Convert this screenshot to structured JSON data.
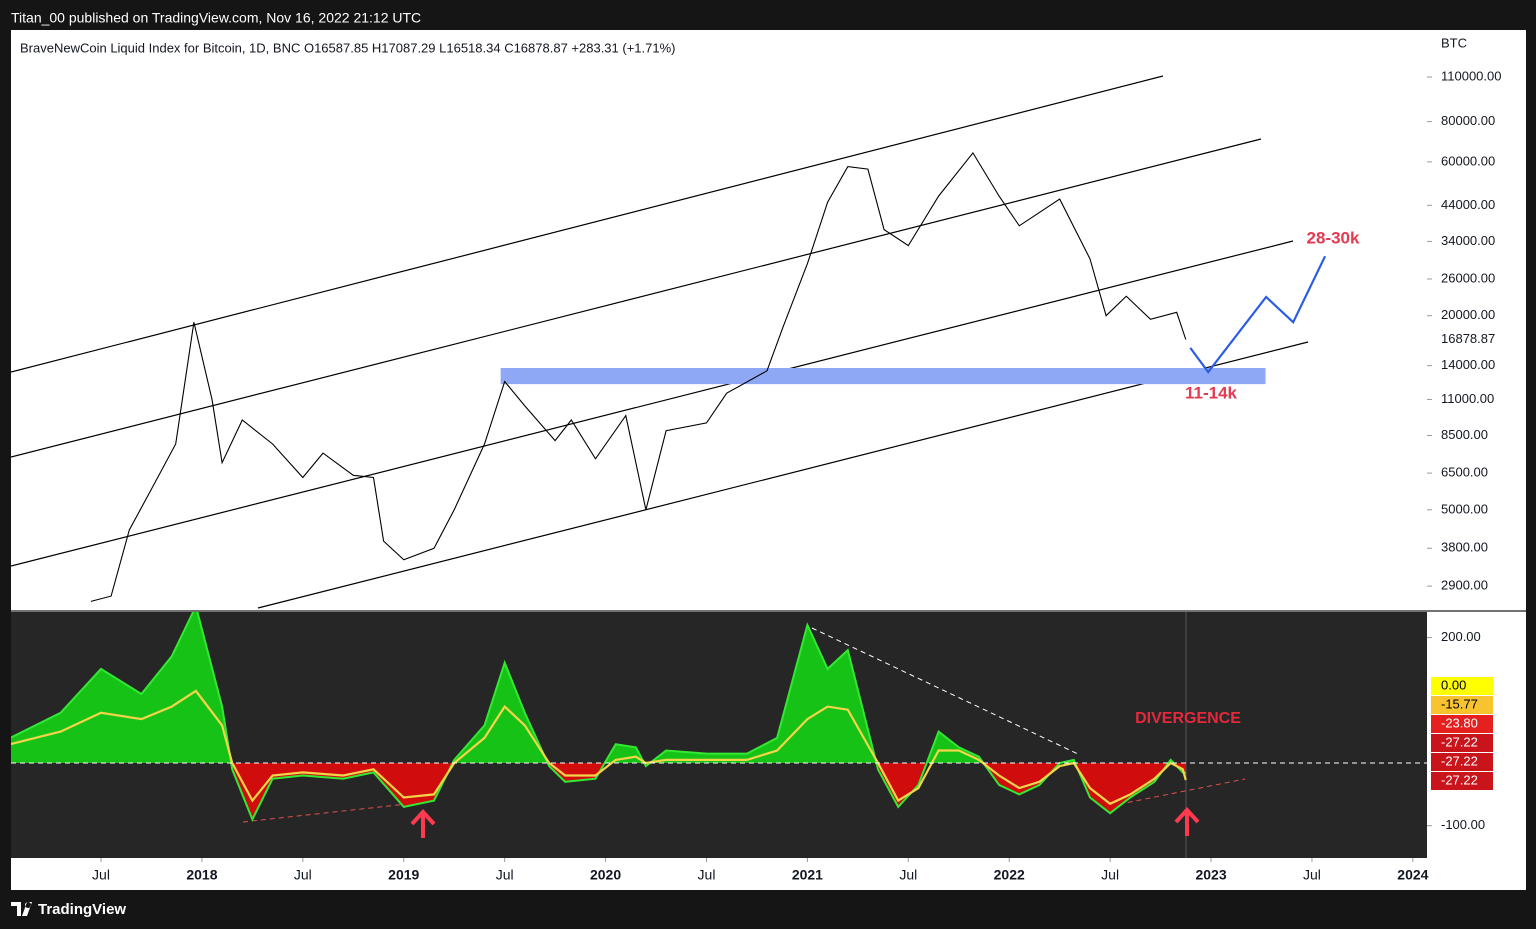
{
  "header": {
    "publisher": "Titan_00 published on TradingView.com, Nov 16, 2022 21:12 UTC"
  },
  "footer": {
    "brand": "TradingView"
  },
  "chart_data": [
    {
      "type": "line",
      "title": "BraveNewCoin Liquid Index for Bitcoin, 1D, BNC  O16587.85  H17087.29  L16518.34  C16878.87  +283.31 (+1.71%)",
      "currency": "BTC",
      "log_scale": true,
      "grid": false,
      "color": "#000000",
      "x": [
        2017.45,
        2017.55,
        2017.64,
        2017.75,
        2017.87,
        2017.96,
        2018.05,
        2018.1,
        2018.2,
        2018.35,
        2018.5,
        2018.6,
        2018.75,
        2018.85,
        2018.9,
        2019.0,
        2019.15,
        2019.25,
        2019.4,
        2019.5,
        2019.6,
        2019.75,
        2019.83,
        2019.95,
        2020.1,
        2020.2,
        2020.3,
        2020.5,
        2020.6,
        2020.8,
        2020.88,
        2021.0,
        2021.1,
        2021.2,
        2021.3,
        2021.38,
        2021.5,
        2021.65,
        2021.82,
        2021.95,
        2022.05,
        2022.25,
        2022.4,
        2022.48,
        2022.58,
        2022.7,
        2022.83,
        2022.875
      ],
      "values": [
        2600,
        2700,
        4330,
        5800,
        8000,
        19100,
        11000,
        7000,
        9500,
        8000,
        6300,
        7500,
        6400,
        6300,
        4000,
        3500,
        3800,
        5000,
        8000,
        12500,
        10500,
        8200,
        9500,
        7200,
        9800,
        5000,
        8800,
        9300,
        11500,
        13500,
        18500,
        29000,
        45000,
        58000,
        57000,
        37000,
        33000,
        47000,
        64000,
        47000,
        38000,
        46000,
        30000,
        20000,
        23000,
        19500,
        20500,
        16878.87
      ],
      "xlim": [
        2017.054,
        2024.07
      ],
      "ylim": [
        2445,
        153900
      ],
      "xticks": [
        {
          "value": 2017.5,
          "label": "Jul"
        },
        2018,
        {
          "value": 2018.5,
          "label": "Jul"
        },
        2019,
        {
          "value": 2019.5,
          "label": "Jul"
        },
        2020,
        {
          "value": 2020.5,
          "label": "Jul"
        },
        2021,
        {
          "value": 2021.5,
          "label": "Jul"
        },
        2022,
        {
          "value": 2022.5,
          "label": "Jul"
        },
        2023,
        {
          "value": 2023.5,
          "label": "Jul"
        },
        2024
      ],
      "yticks": [
        {
          "value": 110000,
          "label": "110000.00"
        },
        {
          "value": 80000,
          "label": "80000.00"
        },
        {
          "value": 60000,
          "label": "60000.00"
        },
        {
          "value": 44000,
          "label": "44000.00"
        },
        {
          "value": 34000,
          "label": "34000.00"
        },
        {
          "value": 26000,
          "label": "26000.00"
        },
        {
          "value": 20000,
          "label": "20000.00"
        },
        {
          "value": 14000,
          "label": "14000.00"
        },
        {
          "value": 11000,
          "label": "11000.00"
        },
        {
          "value": 8500,
          "label": "8500.00"
        },
        {
          "value": 6500,
          "label": "6500.00"
        },
        {
          "value": 5000,
          "label": "5000.00"
        },
        {
          "value": 3800,
          "label": "3800.00"
        },
        {
          "value": 2900,
          "label": "2900.00"
        }
      ],
      "zone": {
        "x": [
          2019.48,
          2023.27
        ],
        "y": [
          12270,
          13770
        ],
        "color": "#8fa8f5"
      },
      "projection": {
        "x": [
          2022.897,
          2022.986,
          2023.273,
          2023.407,
          2023.565
        ],
        "values": [
          15890,
          13380,
          22860,
          19100,
          30600
        ],
        "color": "#2b5ce6"
      },
      "annotations": [
        "28-30k",
        "11-14k"
      ],
      "annotation_color": "#e5394f"
    },
    {
      "type": "line",
      "grid": false,
      "x": [
        2017.05,
        2017.3,
        2017.5,
        2017.7,
        2017.85,
        2017.97,
        2018.1,
        2018.15,
        2018.25,
        2018.35,
        2018.5,
        2018.7,
        2018.85,
        2019.0,
        2019.15,
        2019.25,
        2019.4,
        2019.5,
        2019.6,
        2019.72,
        2019.8,
        2019.95,
        2020.05,
        2020.15,
        2020.2,
        2020.3,
        2020.5,
        2020.7,
        2020.85,
        2021.0,
        2021.1,
        2021.2,
        2021.35,
        2021.45,
        2021.55,
        2021.65,
        2021.75,
        2021.85,
        2021.95,
        2022.05,
        2022.15,
        2022.25,
        2022.32,
        2022.4,
        2022.5,
        2022.6,
        2022.72,
        2022.8,
        2022.86,
        2022.875
      ],
      "series": [
        {
          "color": "#33e833",
          "values": [
            40,
            80,
            150,
            110,
            170,
            250,
            90,
            -10,
            -90,
            -25,
            -20,
            -25,
            -15,
            -70,
            -60,
            5,
            60,
            160,
            80,
            -5,
            -30,
            -25,
            30,
            25,
            -5,
            20,
            15,
            15,
            40,
            220,
            150,
            180,
            -10,
            -70,
            -35,
            50,
            25,
            10,
            -35,
            -50,
            -35,
            0,
            5,
            -55,
            -80,
            -55,
            -30,
            5,
            -15,
            -15.77
          ]
        },
        {
          "color": "#f3d54a",
          "values": [
            30,
            50,
            80,
            70,
            90,
            115,
            60,
            0,
            -60,
            -20,
            -15,
            -20,
            -10,
            -55,
            -50,
            0,
            40,
            90,
            60,
            0,
            -20,
            -20,
            5,
            10,
            0,
            5,
            5,
            5,
            20,
            70,
            90,
            85,
            0,
            -60,
            -40,
            20,
            20,
            5,
            -20,
            -40,
            -30,
            -5,
            0,
            -40,
            -65,
            -50,
            -25,
            0,
            -10,
            -27.22
          ]
        }
      ],
      "fill_above": "#17c217",
      "fill_below": "#d00c0c",
      "xlim": [
        2017.054,
        2024.07
      ],
      "ylim": [
        -151.5,
        240.8
      ],
      "yticks": [
        {
          "value": 200,
          "label": "200.00"
        },
        {
          "value": -100,
          "label": "-100.00"
        }
      ],
      "badges": [
        {
          "value": 0,
          "label": "0.00",
          "color": "#ffff00"
        },
        {
          "value": -15.77,
          "label": "-15.77",
          "color": "#f7c430"
        },
        {
          "value": -23.8,
          "label": "-23.80",
          "color": "#e5201f"
        },
        {
          "value": -27.22,
          "label": "-27.22",
          "color": "#c8141a"
        },
        {
          "value": -27.22,
          "label": "-27.22",
          "color": "#c8141a"
        },
        {
          "value": -27.22,
          "label": "-27.22",
          "color": "#c8141a"
        }
      ],
      "annotations": [
        "DIVERGENCE"
      ],
      "annotation_color": "#e5283c"
    }
  ]
}
